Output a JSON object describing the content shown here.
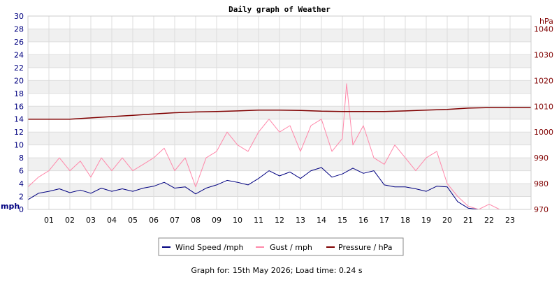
{
  "chart_data": {
    "type": "line",
    "title": "Daily graph of Weather",
    "x_axis": {
      "tick_labels": [
        "01",
        "02",
        "03",
        "04",
        "05",
        "06",
        "07",
        "08",
        "09",
        "10",
        "11",
        "12",
        "13",
        "14",
        "15",
        "16",
        "17",
        "18",
        "19",
        "20",
        "21",
        "22",
        "23"
      ],
      "range_hours": [
        0,
        24
      ]
    },
    "y_left": {
      "unit": "mph",
      "range": [
        0,
        30
      ],
      "ticks": [
        0,
        2,
        4,
        6,
        8,
        10,
        12,
        14,
        16,
        18,
        20,
        22,
        24,
        26,
        28,
        30
      ]
    },
    "y_right": {
      "unit": "hPa",
      "range": [
        970,
        1045
      ],
      "ticks": [
        970,
        980,
        990,
        1000,
        1010,
        1020,
        1030,
        1040
      ]
    },
    "grid": true,
    "legend_position": "bottom",
    "series": [
      {
        "name": "Wind Speed /mph",
        "axis": "left",
        "color": "#000080",
        "x": [
          0,
          0.5,
          1,
          1.5,
          2,
          2.5,
          3,
          3.5,
          4,
          4.5,
          5,
          5.5,
          6,
          6.5,
          7,
          7.5,
          8,
          8.5,
          9,
          9.5,
          10,
          10.5,
          11,
          11.5,
          12,
          12.5,
          13,
          13.5,
          14,
          14.5,
          15,
          15.5,
          16,
          16.5,
          17,
          17.5,
          18,
          18.5,
          19,
          19.5,
          20,
          20.5,
          21,
          21.5,
          22,
          22.5,
          23,
          24
        ],
        "values": [
          1.5,
          2.5,
          2.8,
          3.2,
          2.6,
          3,
          2.5,
          3.3,
          2.8,
          3.2,
          2.8,
          3.3,
          3.6,
          4.2,
          3.3,
          3.5,
          2.4,
          3.3,
          3.8,
          4.5,
          4.2,
          3.8,
          4.8,
          6,
          5.2,
          5.8,
          4.8,
          6,
          6.5,
          5,
          5.5,
          6.4,
          5.6,
          6,
          3.8,
          3.5,
          3.5,
          3.2,
          2.8,
          3.6,
          3.5,
          1.2,
          0.2,
          0,
          0,
          0,
          0,
          0
        ]
      },
      {
        "name": "Gust / mph",
        "axis": "left",
        "color": "#ff88aa",
        "x": [
          0,
          0.5,
          1,
          1.5,
          2,
          2.5,
          3,
          3.5,
          4,
          4.5,
          5,
          5.5,
          6,
          6.5,
          7,
          7.5,
          8,
          8.5,
          9,
          9.5,
          10,
          10.5,
          11,
          11.5,
          12,
          12.5,
          13,
          13.5,
          14,
          14.5,
          15,
          15.2,
          15.5,
          16,
          16.5,
          17,
          17.5,
          18,
          18.5,
          19,
          19.5,
          20,
          20.5,
          21,
          21.5,
          22,
          22.5,
          23,
          24
        ],
        "values": [
          3.5,
          5,
          6,
          8,
          6,
          7.5,
          5,
          8,
          6,
          8,
          6,
          7,
          8,
          9.5,
          6,
          8,
          3.5,
          8,
          9,
          12,
          10,
          9,
          12,
          14,
          12,
          13,
          9,
          13,
          14,
          9,
          11,
          19.5,
          10,
          13,
          8,
          7,
          10,
          8,
          6,
          8,
          9,
          4,
          2,
          0.5,
          0,
          0.8,
          0,
          0,
          0
        ]
      },
      {
        "name": "Pressure / hPa",
        "axis": "right",
        "color": "#800000",
        "x": [
          0,
          1,
          2,
          3,
          4,
          5,
          6,
          7,
          8,
          9,
          10,
          11,
          12,
          13,
          14,
          15,
          16,
          17,
          18,
          19,
          20,
          21,
          22,
          23,
          24
        ],
        "values": [
          1005,
          1005,
          1005,
          1005.5,
          1006,
          1006.5,
          1007,
          1007.5,
          1007.8,
          1008,
          1008.2,
          1008.5,
          1008.5,
          1008.4,
          1008.1,
          1008,
          1008,
          1008,
          1008.2,
          1008.5,
          1008.8,
          1009.3,
          1009.5,
          1009.5,
          1009.5
        ]
      }
    ]
  },
  "footer": {
    "text": "Graph for: 15th May 2026; Load time: 0.24 s"
  }
}
